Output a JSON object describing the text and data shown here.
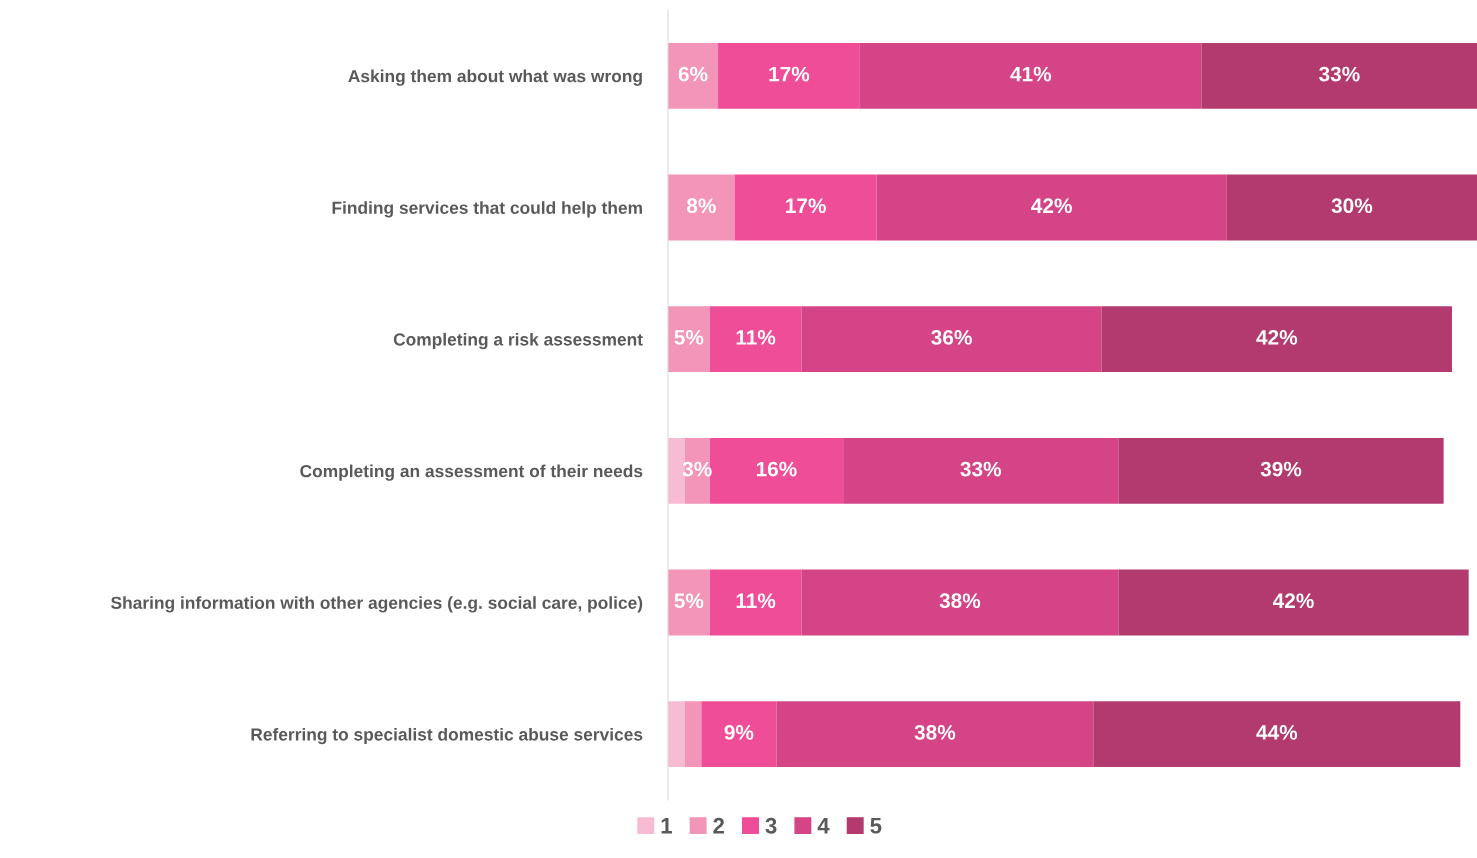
{
  "chart_data": {
    "type": "bar",
    "orientation": "horizontal",
    "stacked": true,
    "categories": [
      "Asking them about what was wrong",
      "Finding services that could help them",
      "Completing a risk assessment",
      "Completing an assessment of their needs",
      "Sharing information with other agencies (e.g. social care, police)",
      "Referring to specialist domestic abuse services"
    ],
    "series": [
      {
        "name": "1",
        "color": "#f7bcd3",
        "values": [
          0,
          0,
          0,
          2,
          0,
          2
        ],
        "value_labels": [
          null,
          null,
          null,
          null,
          null,
          null
        ]
      },
      {
        "name": "2",
        "color": "#f295b8",
        "values": [
          6,
          8,
          5,
          3,
          5,
          2
        ],
        "value_labels": [
          "6%",
          "8%",
          "5%",
          "3%",
          "5%",
          null
        ]
      },
      {
        "name": "3",
        "color": "#ef4d97",
        "values": [
          17,
          17,
          11,
          16,
          11,
          9
        ],
        "value_labels": [
          "17%",
          "17%",
          "11%",
          "16%",
          "11%",
          "9%"
        ]
      },
      {
        "name": "4",
        "color": "#d44486",
        "values": [
          41,
          42,
          36,
          33,
          38,
          38
        ],
        "value_labels": [
          "41%",
          "42%",
          "36%",
          "33%",
          "38%",
          "38%"
        ]
      },
      {
        "name": "5",
        "color": "#b33a6e",
        "values": [
          33,
          30,
          42,
          39,
          42,
          44
        ],
        "value_labels": [
          "33%",
          "30%",
          "42%",
          "39%",
          "42%",
          "44%"
        ]
      }
    ],
    "legend": "bottom",
    "grid": false
  }
}
